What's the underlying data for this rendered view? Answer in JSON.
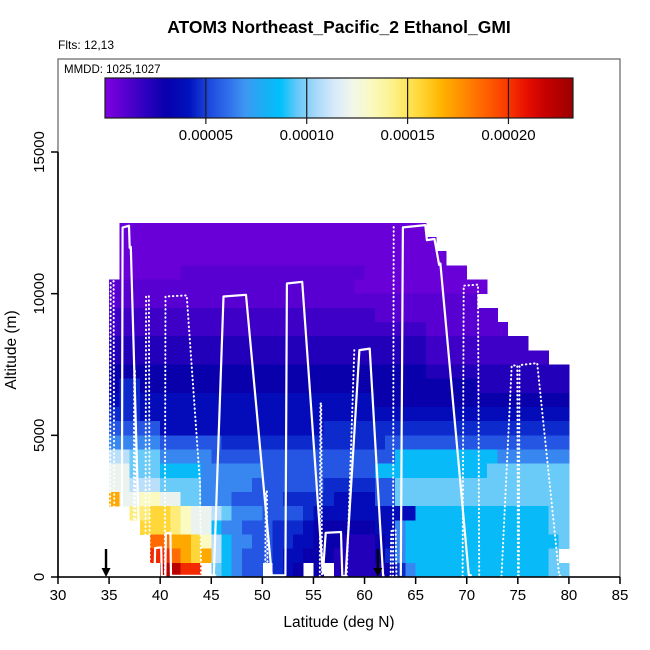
{
  "title": "ATOM3 Northeast_Pacific_2 Ethanol_GMI",
  "flights_note": "Flts: 12,13",
  "mmdd_note": "MMDD: 1025,1027",
  "colors": {
    "track": "#ffffff",
    "arrow": "#000000",
    "axis": "#000000",
    "plot_border": "#6e6e6e",
    "colorbar_border": "#1a1a1a"
  },
  "chart_data": {
    "type": "heatmap",
    "title": "ATOM3 Northeast_Pacific_2 Ethanol_GMI",
    "xlabel": "Latitude (deg N)",
    "ylabel": "Altitude (m)",
    "xlim": [
      30,
      85
    ],
    "ylim": [
      0,
      18300
    ],
    "x_ticks": [
      30,
      35,
      40,
      45,
      50,
      55,
      60,
      65,
      70,
      75,
      80,
      85
    ],
    "y_ticks": [
      0,
      5000,
      10000,
      15000
    ],
    "grid_lines": false,
    "legend_position": "top",
    "colorbar": {
      "min": 0,
      "max": 0.000232,
      "ticks": [
        5e-05,
        0.0001,
        0.00015,
        0.0002
      ],
      "tick_labels": [
        "0.00005",
        "0.00010",
        "0.00015",
        "0.00020"
      ]
    },
    "color_scale_stops": [
      [
        0.0,
        "#7D00E0"
      ],
      [
        0.04,
        "#5A00D2"
      ],
      [
        0.09,
        "#2A00BE"
      ],
      [
        0.13,
        "#0800AC"
      ],
      [
        0.18,
        "#0012BE"
      ],
      [
        0.22,
        "#1C46DE"
      ],
      [
        0.26,
        "#2E6BEA"
      ],
      [
        0.3,
        "#3E97F2"
      ],
      [
        0.34,
        "#19AFF5"
      ],
      [
        0.375,
        "#00C0FA"
      ],
      [
        0.41,
        "#64C8F8"
      ],
      [
        0.45,
        "#A6D8FA"
      ],
      [
        0.49,
        "#D8EAFB"
      ],
      [
        0.53,
        "#F2F7E8"
      ],
      [
        0.57,
        "#FAFAC0"
      ],
      [
        0.61,
        "#FCF292"
      ],
      [
        0.645,
        "#FFE55A"
      ],
      [
        0.68,
        "#FFD32E"
      ],
      [
        0.72,
        "#FFB300"
      ],
      [
        0.76,
        "#FF9000"
      ],
      [
        0.81,
        "#FF6400"
      ],
      [
        0.86,
        "#F93800"
      ],
      [
        0.9,
        "#E81000"
      ],
      [
        0.94,
        "#C80000"
      ],
      [
        1.0,
        "#9B0000"
      ]
    ],
    "grid": {
      "lat_start": 35,
      "lat_step": 1,
      "alt_top": 12500,
      "alt_step": 500,
      "value_key": {
        "0": 5e-06,
        "1": 1e-05,
        "2": 1.6e-05,
        "3": 2.3e-05,
        "4": 3e-05,
        "5": 3.8e-05,
        "6": 4.6e-05,
        "7": 5.5e-05,
        "8": 6.6e-05,
        "9": 8.4e-05,
        "a": 9.6e-05,
        "b": 0.000108,
        "c": 0.00012,
        "d": 0.000132,
        "e": 0.000145,
        "f": 0.000156,
        "g": 0.00017,
        "h": 0.000186,
        "i": 0.000203,
        "j": 0.000222
      },
      "rows": [
        ".000000000000000000000000000000..............",
        ".0000000000000000000000000000000.............",
        ".00000000000000000000000000000000............",
        ".0000001111111111111111110000000000...........",
        "1111111111111111111111110000000000000.........",
        "111111111111111111111111111111111111.........",
        "22222222222222222222222222111111111111.......",
        "222222222222222222222222222222211111111......",
        "33333333333333333333333333333332222222222....",
        "3333333333333333333333333333333222222222222..",
        "444444444444444444444444444444433333333333333",
        "466444444444444444444444444444444444333333333",
        "566555555555555555555555554444444444444444444",
        "666555555555555555555555555555555555555555555",
        "777775555555555555555666666666666666666666666",
        "888887777776666666666666666777777777777777777",
        "bbaaa888887777777777777777779999999999888888888",
        "ccaaa99998888887777777777799999999999aaaaaaaaa",
        "ccbbbaaaa8888877777776666677aaaaaaaaaaaaaaaaa",
        "gccddccaa8887777766666555577aaaaaaaaaaaaaaaaa",
        "..eeffedccba8887777655555555559999999999999aa",
        "...fffedcc988777666544444455899999999999999aa",
        "....hhggfdb988776655444333458999999999999999a",
        "....iihgfgb98777655444333346899999999999999a",
        ".....jjii.a9877.654 4.333334689999999999999aa"
      ]
    },
    "tracks": {
      "solid": [
        [
          [
            36.25,
            2400
          ],
          [
            36.32,
            12330
          ],
          [
            36.95,
            12400
          ],
          [
            37.02,
            11620
          ],
          [
            37.12,
            11650
          ],
          [
            38.02,
            300
          ],
          [
            38.1,
            30
          ],
          [
            39.45,
            30
          ],
          [
            39.5,
            1020
          ],
          [
            40.1,
            1050
          ],
          [
            40.16,
            30
          ],
          [
            40.5,
            30
          ],
          [
            40.56,
            1540
          ],
          [
            41.0,
            1560
          ],
          [
            41.06,
            40
          ],
          [
            45.25,
            40
          ],
          [
            46.2,
            9900
          ],
          [
            48.4,
            9960
          ],
          [
            50.92,
            60
          ],
          [
            52.25,
            60
          ],
          [
            52.4,
            10360
          ],
          [
            53.9,
            10420
          ],
          [
            55.92,
            120
          ],
          [
            56.2,
            1560
          ],
          [
            57.7,
            1590
          ],
          [
            57.82,
            30
          ],
          [
            58.15,
            30
          ],
          [
            59.5,
            8010
          ],
          [
            60.5,
            8060
          ],
          [
            61.82,
            40
          ],
          [
            61.95,
            40
          ]
        ],
        [
          [
            63.55,
            40
          ],
          [
            63.75,
            12340
          ],
          [
            65.95,
            12420
          ],
          [
            66.1,
            11890
          ],
          [
            66.85,
            11930
          ],
          [
            67.3,
            11020
          ],
          [
            67.42,
            11060
          ],
          [
            70.2,
            60
          ],
          [
            70.5,
            60
          ]
        ]
      ],
      "dotted": [
        [
          [
            35.1,
            2400
          ],
          [
            35.16,
            10400
          ],
          [
            35.44,
            10440
          ],
          [
            35.5,
            2400
          ],
          [
            35.56,
            2400
          ],
          [
            35.62,
            30
          ]
        ],
        [
          [
            37.4,
            30
          ],
          [
            37.46,
            7240
          ],
          [
            37.54,
            7260
          ],
          [
            37.6,
            30
          ]
        ],
        [
          [
            38.55,
            30
          ],
          [
            38.62,
            9900
          ],
          [
            38.9,
            9920
          ],
          [
            38.97,
            30
          ]
        ],
        [
          [
            40.45,
            30
          ],
          [
            40.52,
            9900
          ],
          [
            42.6,
            9940
          ],
          [
            43.9,
            3300
          ],
          [
            44.0,
            80
          ],
          [
            44.85,
            80
          ],
          [
            45.35,
            60
          ],
          [
            45.45,
            30
          ]
        ],
        [
          [
            50.28,
            30
          ],
          [
            50.34,
            3010
          ],
          [
            50.44,
            3030
          ],
          [
            50.5,
            30
          ]
        ],
        [
          [
            55.62,
            30
          ],
          [
            55.68,
            6100
          ],
          [
            55.76,
            6150
          ],
          [
            55.84,
            30
          ]
        ],
        [
          [
            58.25,
            30
          ],
          [
            59.0,
            8010
          ]
        ],
        [
          [
            62.55,
            30
          ],
          [
            62.62,
            1620
          ],
          [
            63.05,
            1640
          ],
          [
            63.12,
            30
          ]
        ],
        [
          [
            62.78,
            30
          ],
          [
            62.85,
            12380
          ],
          [
            62.92,
            12400
          ]
        ],
        [
          [
            69.6,
            30
          ],
          [
            69.7,
            10280
          ],
          [
            71.1,
            10320
          ],
          [
            71.22,
            30
          ]
        ],
        [
          [
            73.4,
            30
          ],
          [
            74.4,
            7460
          ],
          [
            74.95,
            7470
          ],
          [
            75.02,
            60
          ],
          [
            75.1,
            60
          ],
          [
            75.16,
            7480
          ],
          [
            76.9,
            7550
          ],
          [
            79.05,
            50
          ],
          [
            79.15,
            50
          ]
        ]
      ]
    },
    "arrows": [
      {
        "lat": 34.7
      },
      {
        "lat": 61.3
      }
    ]
  }
}
